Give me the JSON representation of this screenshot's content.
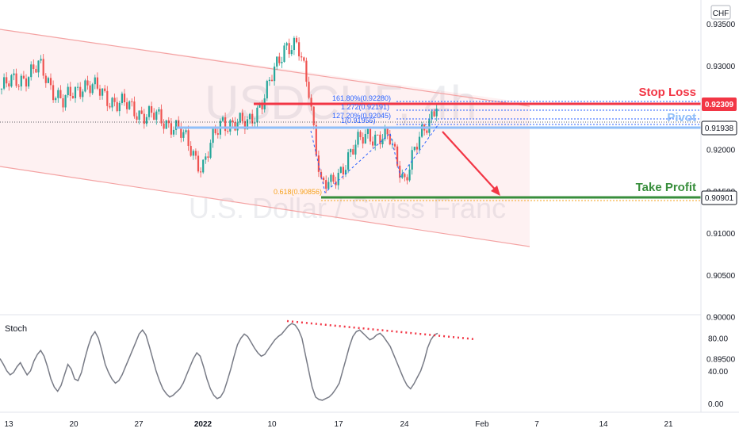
{
  "chart_data": {
    "type": "candlestick",
    "symbol_watermark": "USDCHF, 4h",
    "instrument_watermark": "U.S. Dollar / Swiss Franc",
    "currency": "CHF",
    "price_axis": {
      "ticks": [
        "0.93500",
        "0.93000",
        "0.92500",
        "0.92000",
        "0.91500",
        "0.91000",
        "0.90500",
        "0.90000",
        "0.89500"
      ],
      "ylim": [
        0.892,
        0.936
      ]
    },
    "time_axis": {
      "ticks": [
        "13",
        "20",
        "27",
        "2022",
        "3",
        "10",
        "17",
        "24",
        "Feb",
        "7",
        "14",
        "21"
      ]
    },
    "levels": {
      "stop_loss": {
        "label": "Stop Loss",
        "price": "0.92309",
        "color": "#f23645"
      },
      "pivot": {
        "label": "Pivot",
        "price": "0.91938",
        "color": "#90bff9"
      },
      "take_profit": {
        "label": "Take Profit",
        "price": "0.90901",
        "color": "#388e3c"
      }
    },
    "fib_labels": [
      {
        "text": "161.80%(0.92280)",
        "color": "#2962ff"
      },
      {
        "text": "1.272(0.92191)",
        "color": "#2962ff"
      },
      {
        "text": "127.20%(0.92045)",
        "color": "#2962ff"
      },
      {
        "text": "1(0.91956)",
        "color": "#2962ff"
      },
      {
        "text": "0.618(0.90856)",
        "color": "#f7a21b"
      }
    ],
    "series": [
      {
        "name": "USDCHF",
        "type": "candles"
      }
    ],
    "stoch": {
      "label": "Stoch",
      "ticks": [
        "80.00",
        "40.00",
        "0.00"
      ],
      "ylim": [
        -5,
        105
      ],
      "values": [
        55,
        48,
        40,
        35,
        38,
        45,
        50,
        42,
        35,
        40,
        52,
        60,
        65,
        58,
        45,
        30,
        20,
        15,
        22,
        35,
        48,
        42,
        30,
        28,
        38,
        55,
        70,
        82,
        88,
        80,
        65,
        48,
        38,
        30,
        25,
        28,
        35,
        45,
        55,
        65,
        75,
        85,
        90,
        84,
        70,
        55,
        40,
        28,
        18,
        12,
        8,
        10,
        14,
        18,
        25,
        35,
        45,
        55,
        62,
        58,
        45,
        30,
        18,
        10,
        6,
        8,
        15,
        28,
        42,
        58,
        72,
        80,
        85,
        82,
        75,
        68,
        62,
        58,
        60,
        66,
        72,
        78,
        82,
        85,
        90,
        95,
        98,
        96,
        90,
        80,
        60,
        40,
        20,
        8,
        5,
        4,
        6,
        8,
        12,
        18,
        25,
        40,
        55,
        70,
        82,
        88,
        90,
        86,
        82,
        78,
        80,
        84,
        86,
        82,
        76,
        70,
        60,
        50,
        40,
        30,
        22,
        18,
        24,
        32,
        40,
        52,
        68,
        78,
        84,
        86
      ]
    },
    "colors": {
      "up": "#26a69a",
      "down": "#ef5350",
      "channel": "#f4a3a3",
      "stoch_line": "#787b86",
      "stoch_trend": "#f23645",
      "arrow": "#f23645"
    }
  }
}
